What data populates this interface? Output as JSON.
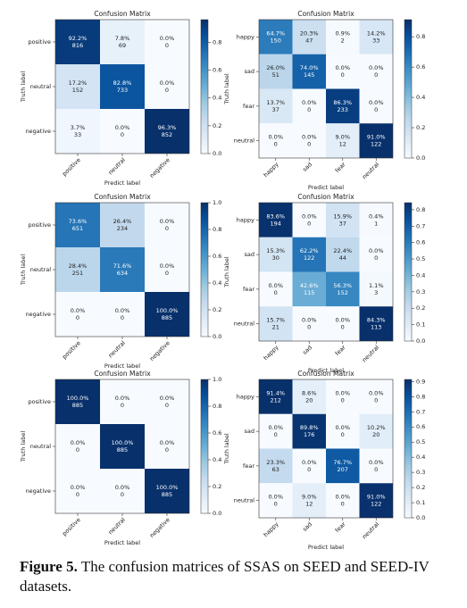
{
  "chart_data": [
    {
      "type": "heatmap",
      "title": "Confusion Matrix",
      "xlabel": "Predict label",
      "ylabel": "Truth label",
      "colormap": "Blues",
      "x_categories": [
        "positive",
        "neutral",
        "negative"
      ],
      "y_categories": [
        "positive",
        "neutral",
        "negative"
      ],
      "values": [
        [
          0.922,
          0.078,
          0.0
        ],
        [
          0.172,
          0.828,
          0.0
        ],
        [
          0.037,
          0.0,
          0.963
        ]
      ],
      "value_labels": [
        [
          "92.2%",
          "7.8%",
          "0.0%"
        ],
        [
          "17.2%",
          "82.8%",
          "0.0%"
        ],
        [
          "3.7%",
          "0.0%",
          "96.3%"
        ]
      ],
      "counts": [
        [
          816,
          69,
          0
        ],
        [
          152,
          733,
          0
        ],
        [
          33,
          0,
          852
        ]
      ],
      "zlim": [
        0,
        0.963
      ],
      "zticks": [
        {
          "value": 0,
          "label": "0.0"
        },
        0.2,
        0.4,
        0.6,
        0.8
      ]
    },
    {
      "type": "heatmap",
      "title": "Confusion Matrix",
      "xlabel": "Predict label",
      "ylabel": "Truth label",
      "colormap": "Blues",
      "x_categories": [
        "happy",
        "sad",
        "fear",
        "neutral"
      ],
      "y_categories": [
        "happy",
        "sad",
        "fear",
        "neutral"
      ],
      "values": [
        [
          0.647,
          0.203,
          0.009,
          0.142
        ],
        [
          0.26,
          0.74,
          0.0,
          0.0
        ],
        [
          0.137,
          0.0,
          0.863,
          0.0
        ],
        [
          0.0,
          0.0,
          0.09,
          0.91
        ]
      ],
      "value_labels": [
        [
          "64.7%",
          "20.3%",
          "0.9%",
          "14.2%"
        ],
        [
          "26.0%",
          "74.0%",
          "0.0%",
          "0.0%"
        ],
        [
          "13.7%",
          "0.0%",
          "86.3%",
          "0.0%"
        ],
        [
          "0.0%",
          "0.0%",
          "9.0%",
          "91.0%"
        ]
      ],
      "counts": [
        [
          150,
          47,
          2,
          33
        ],
        [
          51,
          145,
          0,
          0
        ],
        [
          37,
          0,
          233,
          0
        ],
        [
          0,
          0,
          12,
          122
        ]
      ],
      "zlim": [
        0,
        0.913
      ],
      "zticks": [
        {
          "value": 0,
          "label": "0.0"
        },
        0.2,
        0.4,
        0.6,
        0.8
      ]
    },
    {
      "type": "heatmap",
      "title": "Confusion Matrix",
      "xlabel": "Predict label",
      "ylabel": "Truth label",
      "colormap": "Blues",
      "x_categories": [
        "positive",
        "neutral",
        "negative"
      ],
      "y_categories": [
        "positive",
        "neutral",
        "negative"
      ],
      "values": [
        [
          0.736,
          0.264,
          0.0
        ],
        [
          0.284,
          0.716,
          0.0
        ],
        [
          0.0,
          0.0,
          1.0
        ]
      ],
      "value_labels": [
        [
          "73.6%",
          "26.4%",
          "0.0%"
        ],
        [
          "28.4%",
          "71.6%",
          "0.0%"
        ],
        [
          "0.0%",
          "0.0%",
          "100.0%"
        ]
      ],
      "counts": [
        [
          651,
          234,
          0
        ],
        [
          251,
          634,
          0
        ],
        [
          0,
          0,
          885
        ]
      ],
      "zlim": [
        0,
        1
      ],
      "zticks": [
        {
          "value": 0,
          "label": "0.0"
        },
        0.2,
        0.4,
        0.6,
        0.8,
        {
          "value": 1,
          "label": "1.0"
        }
      ]
    },
    {
      "type": "heatmap",
      "title": "Confusion Matrix",
      "xlabel": "Predict label",
      "ylabel": "Truth label",
      "colormap": "Blues",
      "x_categories": [
        "happy",
        "sad",
        "fear",
        "neutral"
      ],
      "y_categories": [
        "happy",
        "sad",
        "fear",
        "neutral"
      ],
      "values": [
        [
          0.836,
          0.0,
          0.159,
          0.004
        ],
        [
          0.153,
          0.622,
          0.224,
          0.0
        ],
        [
          0.0,
          0.426,
          0.563,
          0.011
        ],
        [
          0.157,
          0.0,
          0.0,
          0.843
        ]
      ],
      "value_labels": [
        [
          "83.6%",
          "0.0%",
          "15.9%",
          "0.4%"
        ],
        [
          "15.3%",
          "62.2%",
          "22.4%",
          "0.0%"
        ],
        [
          "0.0%",
          "42.6%",
          "56.3%",
          "1.1%"
        ],
        [
          "15.7%",
          "0.0%",
          "0.0%",
          "84.3%"
        ]
      ],
      "counts": [
        [
          194,
          0,
          37,
          1
        ],
        [
          30,
          122,
          44,
          0
        ],
        [
          0,
          115,
          152,
          3
        ],
        [
          21,
          0,
          0,
          113
        ]
      ],
      "zlim": [
        0,
        0.843
      ],
      "zticks": [
        {
          "value": 0,
          "label": "0.0"
        },
        0.1,
        0.2,
        0.3,
        0.4,
        0.5,
        0.6,
        0.7,
        0.8
      ]
    },
    {
      "type": "heatmap",
      "title": "Confusion Matrix",
      "xlabel": "Predict label",
      "ylabel": "Truth label",
      "colormap": "Blues",
      "x_categories": [
        "positive",
        "neutral",
        "negative"
      ],
      "y_categories": [
        "positive",
        "neutral",
        "negative"
      ],
      "values": [
        [
          1.0,
          0.0,
          0.0
        ],
        [
          0.0,
          1.0,
          0.0
        ],
        [
          0.0,
          0.0,
          1.0
        ]
      ],
      "value_labels": [
        [
          "100.0%",
          "0.0%",
          "0.0%"
        ],
        [
          "0.0%",
          "100.0%",
          "0.0%"
        ],
        [
          "0.0%",
          "0.0%",
          "100.0%"
        ]
      ],
      "counts": [
        [
          885,
          0,
          0
        ],
        [
          0,
          885,
          0
        ],
        [
          0,
          0,
          885
        ]
      ],
      "zlim": [
        0,
        1
      ],
      "zticks": [
        {
          "value": 0,
          "label": "0.0"
        },
        0.2,
        0.4,
        0.6,
        0.8,
        {
          "value": 1,
          "label": "1.0"
        }
      ]
    },
    {
      "type": "heatmap",
      "title": "Confusion Matrix",
      "xlabel": "Predict label",
      "ylabel": "Truth label",
      "colormap": "Blues",
      "x_categories": [
        "happy",
        "sad",
        "fear",
        "neutral"
      ],
      "y_categories": [
        "happy",
        "sad",
        "fear",
        "neutral"
      ],
      "values": [
        [
          0.914,
          0.086,
          0.0,
          0.0
        ],
        [
          0.0,
          0.898,
          0.0,
          0.102
        ],
        [
          0.233,
          0.0,
          0.767,
          0.0
        ],
        [
          0.0,
          0.09,
          0.0,
          0.91
        ]
      ],
      "value_labels": [
        [
          "91.4%",
          "8.6%",
          "0.0%",
          "0.0%"
        ],
        [
          "0.0%",
          "89.8%",
          "0.0%",
          "10.2%"
        ],
        [
          "23.3%",
          "0.0%",
          "76.7%",
          "0.0%"
        ],
        [
          "0.0%",
          "9.0%",
          "0.0%",
          "91.0%"
        ]
      ],
      "counts": [
        [
          212,
          20,
          0,
          0
        ],
        [
          0,
          176,
          0,
          20
        ],
        [
          63,
          0,
          207,
          0
        ],
        [
          0,
          12,
          0,
          122
        ]
      ],
      "zlim": [
        0,
        0.914
      ],
      "zticks": [
        {
          "value": 0,
          "label": "0.0"
        },
        0.1,
        0.2,
        0.3,
        0.4,
        0.5,
        0.6,
        0.7,
        0.8,
        {
          "value": 0.9,
          "label": "0.9"
        }
      ]
    }
  ],
  "caption": {
    "label": "Figure 5.",
    "text": "The confusion matrices of SSAS on SEED and SEED-IV datasets."
  }
}
